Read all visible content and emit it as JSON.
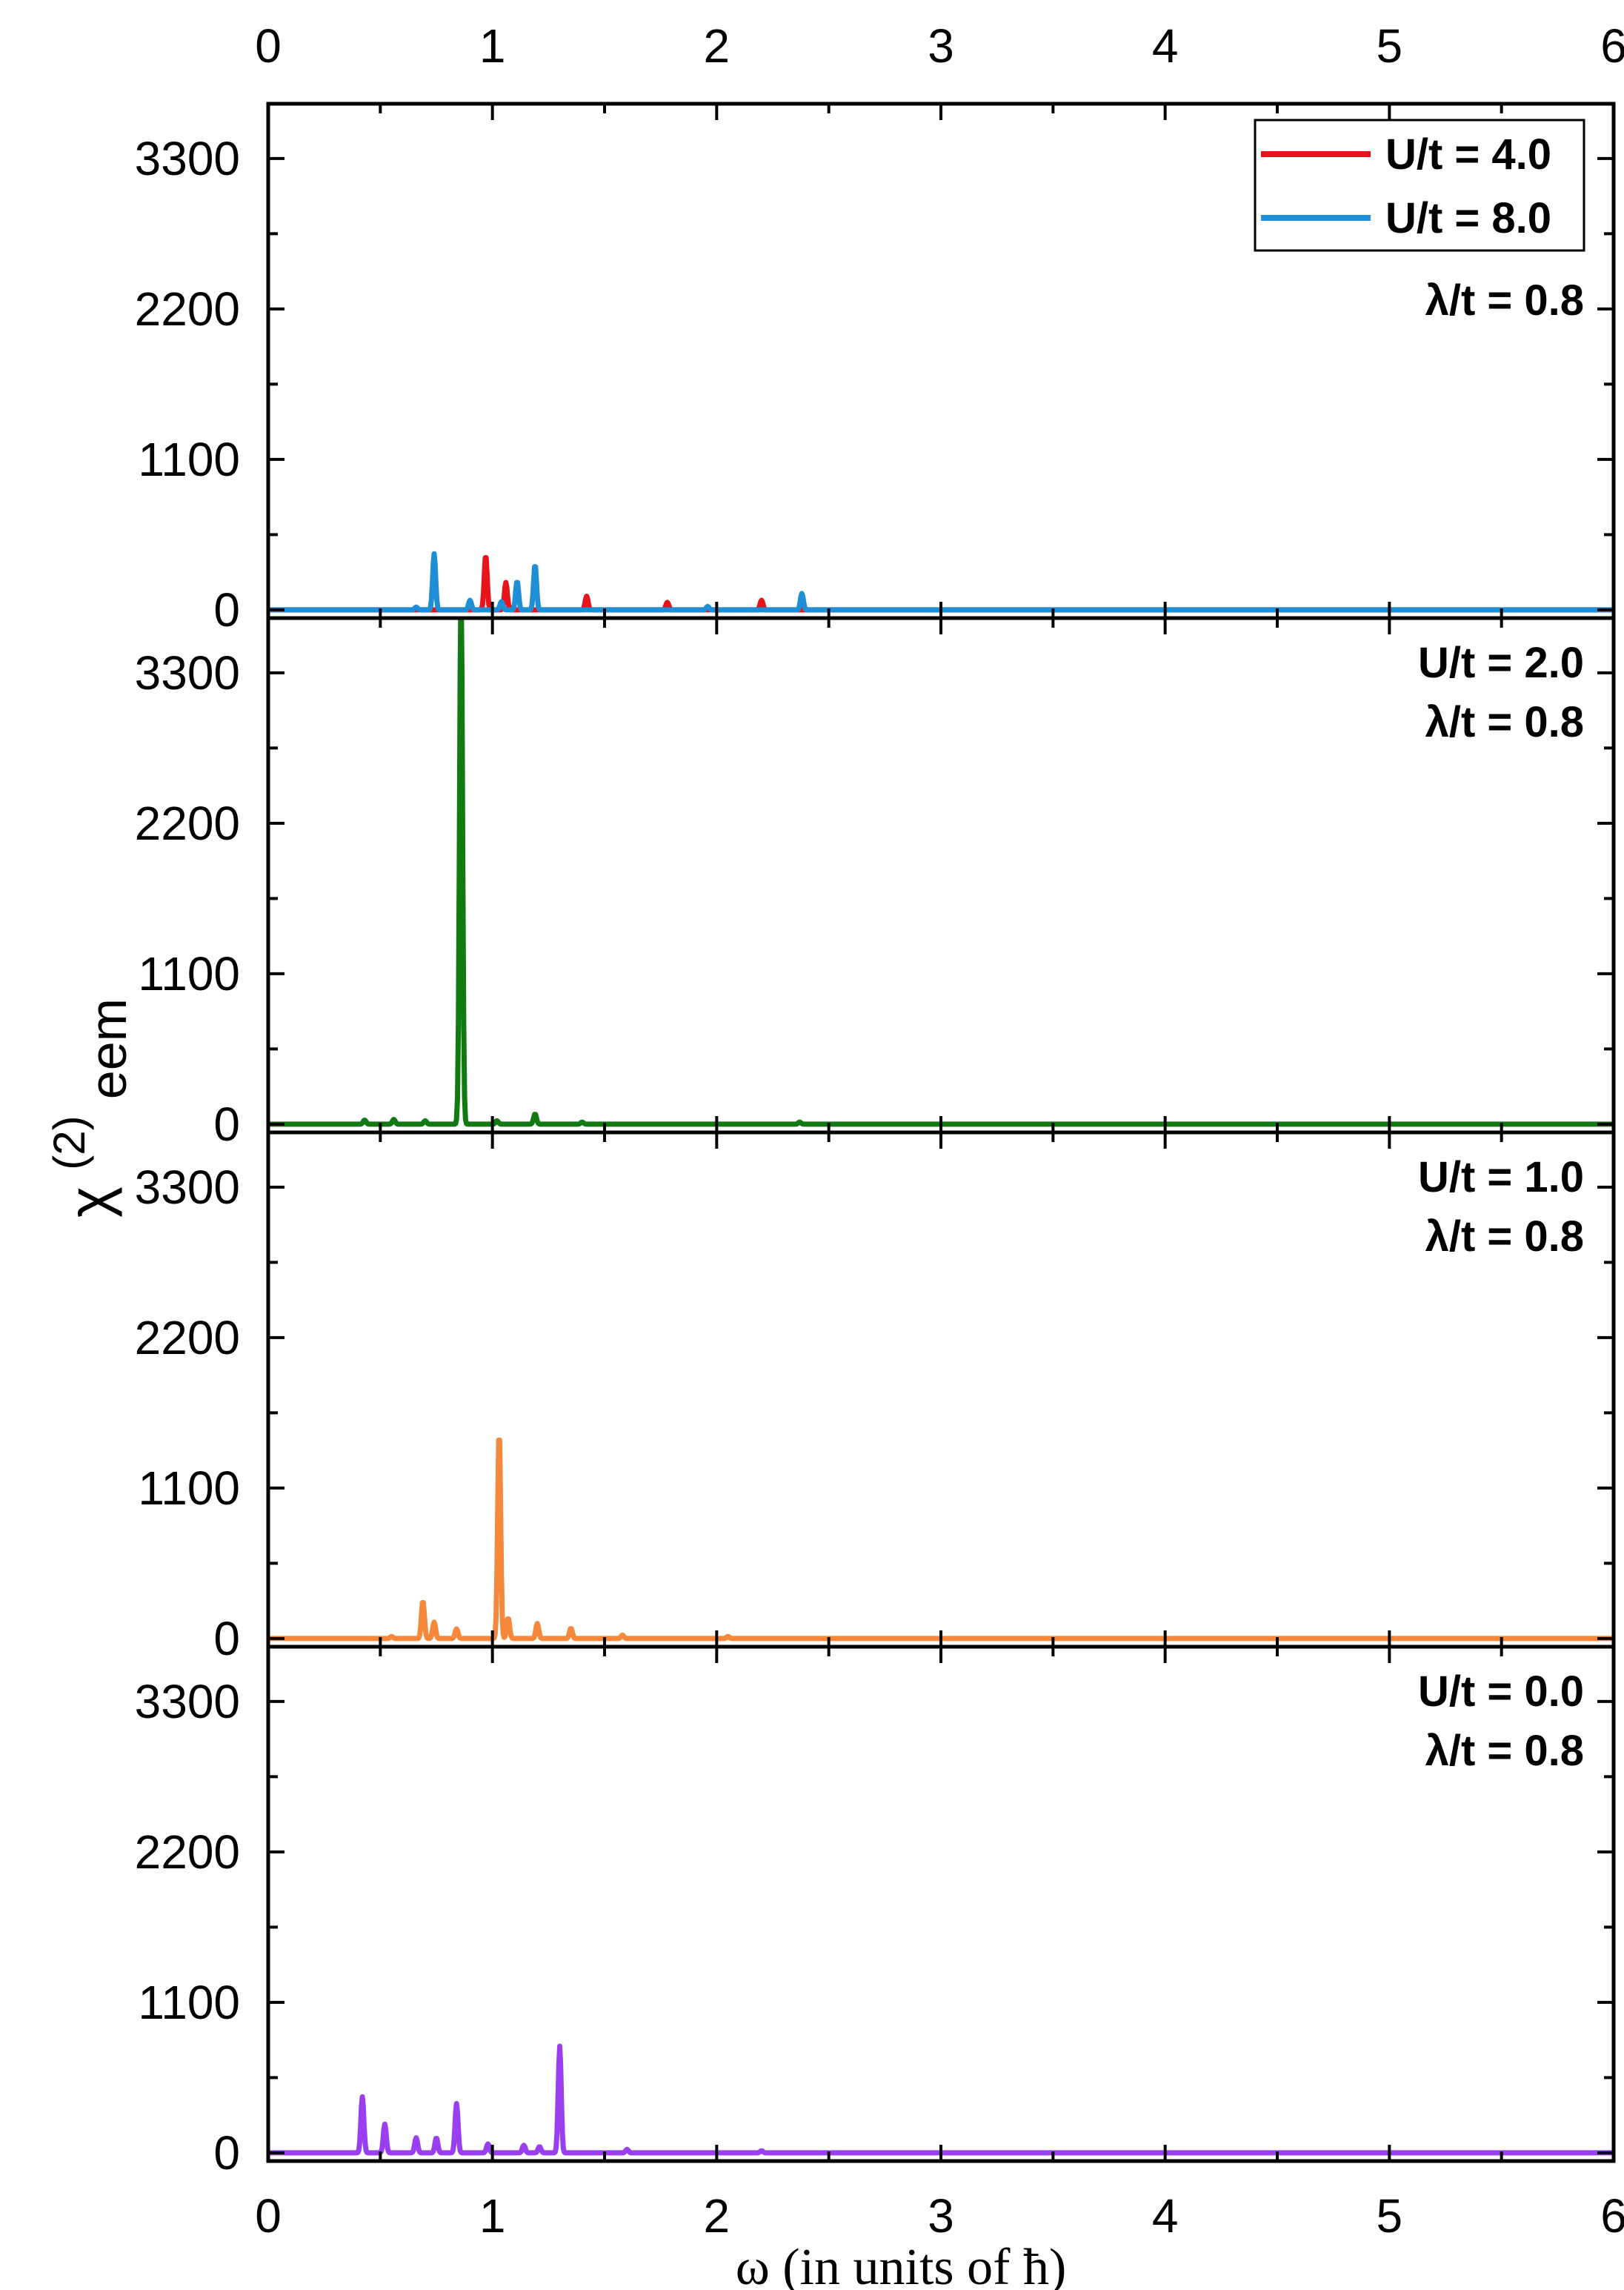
{
  "chart_data": {
    "type": "line",
    "xlabel": "ω (in units of ħ)",
    "ylabel_main": "χ",
    "ylabel_sup": "(2)",
    "ylabel_sub": "eem",
    "xlim": [
      0,
      6
    ],
    "ylim": [
      -60,
      3700
    ],
    "x_ticks": [
      "0",
      "1",
      "2",
      "3",
      "4",
      "5",
      "6"
    ],
    "y_ticks": [
      "0",
      "1100",
      "2200",
      "3300"
    ],
    "legend": {
      "position": "top-right",
      "entries": [
        "U/t = 4.0",
        "U/t = 8.0"
      ]
    },
    "panels": [
      {
        "annotation": [
          "λ/t = 0.8"
        ],
        "series": [
          {
            "name": "U/t = 4.0",
            "color": "#e8141c",
            "peaks": [
              [
                0.97,
                400
              ],
              [
                1.06,
                200
              ],
              [
                1.42,
                100
              ],
              [
                1.78,
                55
              ],
              [
                2.2,
                70
              ]
            ]
          },
          {
            "name": "U/t = 8.0",
            "color": "#1e8fd6",
            "peaks": [
              [
                0.66,
                20
              ],
              [
                0.74,
                410
              ],
              [
                0.9,
                70
              ],
              [
                1.04,
                60
              ],
              [
                1.11,
                210
              ],
              [
                1.19,
                330
              ],
              [
                1.96,
                25
              ],
              [
                2.38,
                120
              ]
            ]
          }
        ]
      },
      {
        "annotation": [
          "U/t = 2.0",
          "λ/t = 0.8"
        ],
        "series": [
          {
            "name": "U/t = 2.0",
            "color": "#117a11",
            "peaks": [
              [
                0.43,
                30
              ],
              [
                0.56,
                35
              ],
              [
                0.7,
                25
              ],
              [
                0.86,
                3990
              ],
              [
                1.02,
                25
              ],
              [
                1.19,
                75
              ],
              [
                1.4,
                15
              ],
              [
                2.37,
                15
              ]
            ]
          }
        ]
      },
      {
        "annotation": [
          "U/t = 1.0",
          "λ/t = 0.8"
        ],
        "series": [
          {
            "name": "U/t = 1.0",
            "color": "#f5883a",
            "peaks": [
              [
                0.55,
                15
              ],
              [
                0.69,
                275
              ],
              [
                0.74,
                120
              ],
              [
                0.84,
                70
              ],
              [
                1.03,
                1520
              ],
              [
                1.07,
                150
              ],
              [
                1.2,
                110
              ],
              [
                1.35,
                75
              ],
              [
                1.58,
                25
              ],
              [
                2.05,
                15
              ]
            ]
          }
        ]
      },
      {
        "annotation": [
          "U/t = 0.0",
          "λ/t = 0.8"
        ],
        "series": [
          {
            "name": "U/t = 0.0",
            "color": "#9a3ff0",
            "peaks": [
              [
                0.42,
                410
              ],
              [
                0.52,
                210
              ],
              [
                0.66,
                110
              ],
              [
                0.75,
                110
              ],
              [
                0.84,
                360
              ],
              [
                0.98,
                65
              ],
              [
                1.14,
                55
              ],
              [
                1.21,
                45
              ],
              [
                1.3,
                780
              ],
              [
                1.6,
                25
              ],
              [
                2.2,
                15
              ]
            ]
          }
        ]
      }
    ]
  }
}
